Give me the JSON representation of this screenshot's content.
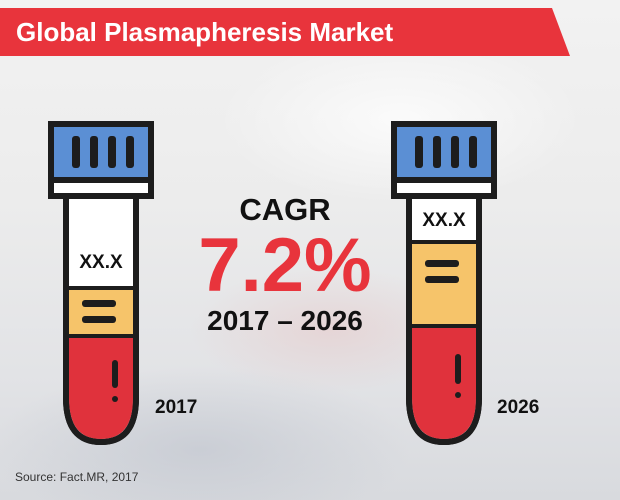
{
  "title": "Global Plasmapheresis Market",
  "source": "Source: Fact.MR, 2017",
  "colors": {
    "banner": "#e8343c",
    "cap_blue": "#5b8fd4",
    "plasma_yellow": "#f6c46a",
    "blood_red": "#e0323c",
    "outline": "#1d1d1d"
  },
  "cagr": {
    "label": "CAGR",
    "value": "7.2%",
    "period": "2017 – 2026"
  },
  "chart_data": {
    "type": "bar",
    "categories": [
      "2017",
      "2026"
    ],
    "value_labels": [
      "XX.X",
      "XX.X"
    ],
    "fill_levels": [
      0.64,
      0.82
    ],
    "title": "Global Plasmapheresis Market"
  },
  "tubes": [
    {
      "value": "XX.X",
      "year": "2017"
    },
    {
      "value": "XX.X",
      "year": "2026"
    }
  ]
}
